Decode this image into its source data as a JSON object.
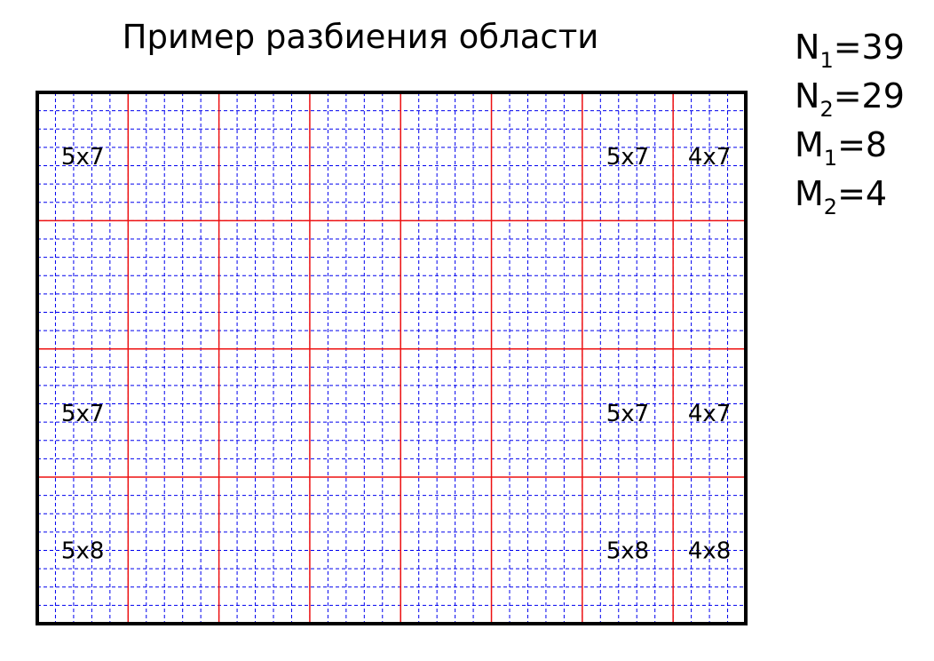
{
  "title": "Пример разбиения области",
  "parameters": [
    {
      "symbol": "N",
      "index": "1",
      "value": "=39"
    },
    {
      "symbol": "N",
      "index": "2",
      "value": "=29"
    },
    {
      "symbol": "M",
      "index": "1",
      "value": "=8"
    },
    {
      "symbol": "M",
      "index": "2",
      "value": "=4"
    }
  ],
  "grid": {
    "cells_x": 39,
    "cells_y": 29,
    "block_cols": [
      5,
      5,
      5,
      5,
      5,
      5,
      5,
      4
    ],
    "block_rows": [
      7,
      7,
      7,
      8
    ],
    "fine_line_color": "#0000ee",
    "block_line_color": "#ee1111",
    "border_color": "#000000"
  },
  "labels": [
    {
      "text": "5x7",
      "col": 0,
      "row": 0
    },
    {
      "text": "5x7",
      "col": 6,
      "row": 0
    },
    {
      "text": "4x7",
      "col": 7,
      "row": 0
    },
    {
      "text": "5x7",
      "col": 0,
      "row": 2
    },
    {
      "text": "5x7",
      "col": 6,
      "row": 2
    },
    {
      "text": "4x7",
      "col": 7,
      "row": 2
    },
    {
      "text": "5x8",
      "col": 0,
      "row": 3
    },
    {
      "text": "5x8",
      "col": 6,
      "row": 3
    },
    {
      "text": "4x8",
      "col": 7,
      "row": 3
    }
  ]
}
